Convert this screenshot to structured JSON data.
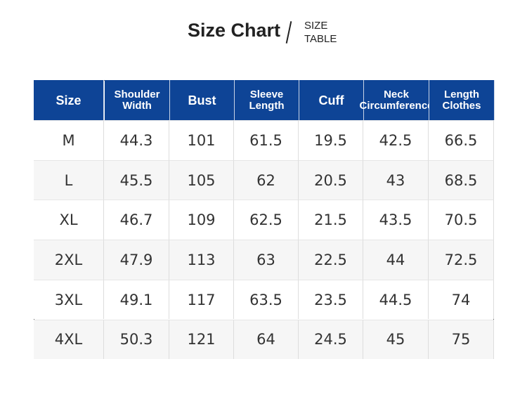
{
  "header": {
    "title": "Size Chart",
    "subtitle_top": "SIZE",
    "subtitle_bottom": "TABLE"
  },
  "table": {
    "columns": [
      "Size",
      "Shoulder Width",
      "Bust",
      "Sleeve Length",
      "Cuff",
      "Neck Circumference",
      "Length Clothes"
    ],
    "rows": [
      [
        "M",
        "44.3",
        "101",
        "61.5",
        "19.5",
        "42.5",
        "66.5"
      ],
      [
        "L",
        "45.5",
        "105",
        "62",
        "20.5",
        "43",
        "68.5"
      ],
      [
        "XL",
        "46.7",
        "109",
        "62.5",
        "21.5",
        "43.5",
        "70.5"
      ],
      [
        "2XL",
        "47.9",
        "113",
        "63",
        "22.5",
        "44",
        "72.5"
      ],
      [
        "3XL",
        "49.1",
        "117",
        "63.5",
        "23.5",
        "44.5",
        "74"
      ],
      [
        "4XL",
        "50.3",
        "121",
        "64",
        "24.5",
        "45",
        "75"
      ]
    ]
  }
}
